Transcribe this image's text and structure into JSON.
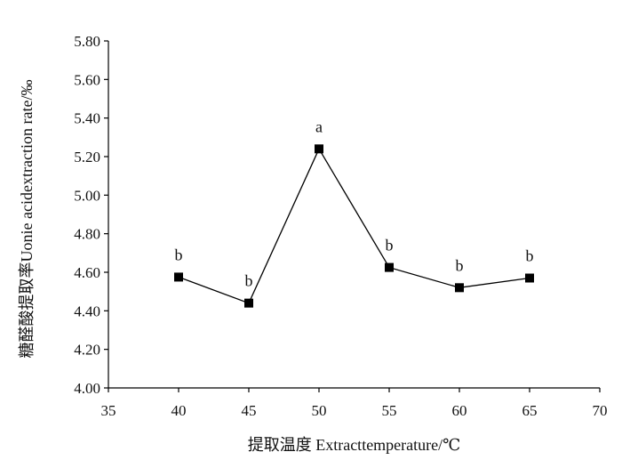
{
  "chart_data": {
    "type": "line",
    "title": "",
    "xlabel": "提取温度 Extracttemperature/℃",
    "ylabel": "糖醛酸提取率Uonie acidextraction rate/‰",
    "xlim": [
      35,
      70
    ],
    "ylim": [
      4.0,
      5.8
    ],
    "xticks": [
      "35",
      "40",
      "45",
      "50",
      "55",
      "60",
      "65",
      "70"
    ],
    "yticks": [
      "4.00",
      "4.20",
      "4.40",
      "4.60",
      "4.80",
      "5.00",
      "5.20",
      "5.40",
      "5.60",
      "5.80"
    ],
    "grid": false,
    "series": [
      {
        "x": [
          40,
          45,
          50,
          55,
          60,
          65
        ],
        "y": [
          4.575,
          4.44,
          5.24,
          4.625,
          4.52,
          4.57
        ],
        "labels": [
          "b",
          "b",
          "a",
          "b",
          "b",
          "b"
        ],
        "marker": "square",
        "color": "#000000"
      }
    ]
  }
}
